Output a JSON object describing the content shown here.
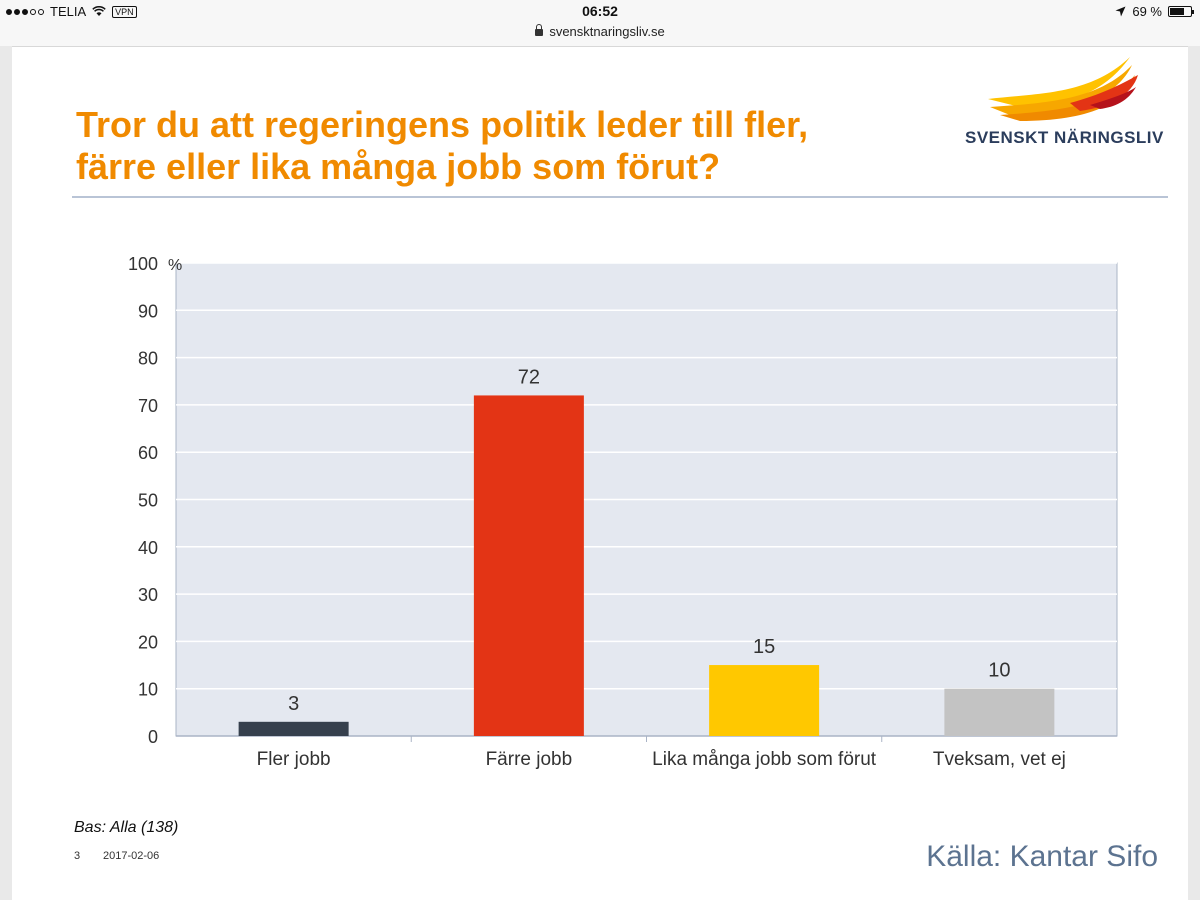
{
  "statusbar": {
    "carrier": "TELIA",
    "vpn": "VPN",
    "time": "06:52",
    "battery": "69 %",
    "battery_level": 0.69
  },
  "browser": {
    "url": "svensktnaringsliv.se"
  },
  "slide": {
    "title_line1": "Tror du att regeringens politik leder till fler,",
    "title_line2": "färre eller lika många jobb som förut?",
    "logo_text": "SVENSKT NÄRINGSLIV",
    "footnote": "Bas: Alla (138)",
    "page_number": "3",
    "date": "2017-02-06",
    "source": "Källa: Kantar Sifo"
  },
  "colors": {
    "title": "#f08a00",
    "plot_bg": "#e4e8f0",
    "bars": [
      "#36404d",
      "#e33415",
      "#ffc800",
      "#c3c3c3"
    ]
  },
  "chart_data": {
    "type": "bar",
    "title": "Tror du att regeringens politik leder till fler, färre eller lika många jobb som förut?",
    "categories": [
      "Fler jobb",
      "Färre jobb",
      "Lika många jobb som förut",
      "Tveksam, vet ej"
    ],
    "values": [
      3,
      72,
      15,
      10
    ],
    "value_labels": [
      "3",
      "72",
      "15",
      "10"
    ],
    "yticks": [
      "0",
      "10",
      "20",
      "30",
      "40",
      "50",
      "60",
      "70",
      "80",
      "90",
      "100"
    ],
    "yunit": "%",
    "ylim": [
      0,
      100
    ],
    "xlabel": "",
    "ylabel": "%",
    "grid": true
  }
}
